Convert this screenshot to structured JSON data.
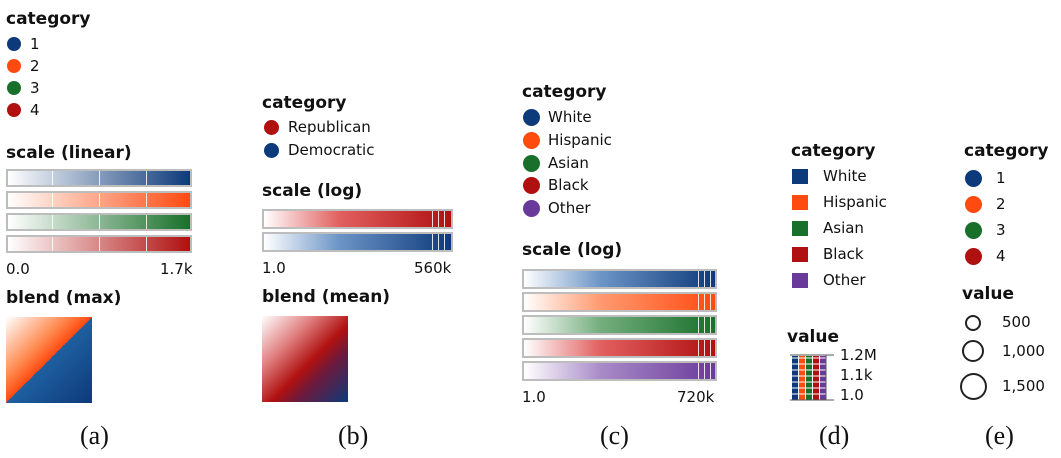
{
  "colors": {
    "blue": "#0d3a7a",
    "orange": "#ff4a10",
    "green": "#18702a",
    "red": "#b01010",
    "purple": "#6a3a9a"
  },
  "a": {
    "legend_title": "category",
    "items": [
      "1",
      "2",
      "3",
      "4"
    ],
    "scale_title": "scale (linear)",
    "scale_min": "0.0",
    "scale_max": "1.7k",
    "blend_title": "blend (max)",
    "caption": "(a)"
  },
  "b": {
    "legend_title": "category",
    "items": [
      "Republican",
      "Democratic"
    ],
    "scale_title": "scale (log)",
    "scale_min": "1.0",
    "scale_max": "560k",
    "blend_title": "blend (mean)",
    "caption": "(b)"
  },
  "c": {
    "legend_title": "category",
    "items": [
      "White",
      "Hispanic",
      "Asian",
      "Black",
      "Other"
    ],
    "scale_title": "scale (log)",
    "scale_min": "1.0",
    "scale_max": "720k",
    "caption": "(c)"
  },
  "d": {
    "legend_title": "category",
    "items": [
      "White",
      "Hispanic",
      "Asian",
      "Black",
      "Other"
    ],
    "value_title": "value",
    "value_ticks": [
      "1.2M",
      "1.1k",
      "1.0"
    ],
    "caption": "(d)"
  },
  "e": {
    "legend_title": "category",
    "items": [
      "1",
      "2",
      "3",
      "4"
    ],
    "value_title": "value",
    "value_labels": [
      "500",
      "1,000",
      "1,500"
    ],
    "caption": "(e)"
  }
}
